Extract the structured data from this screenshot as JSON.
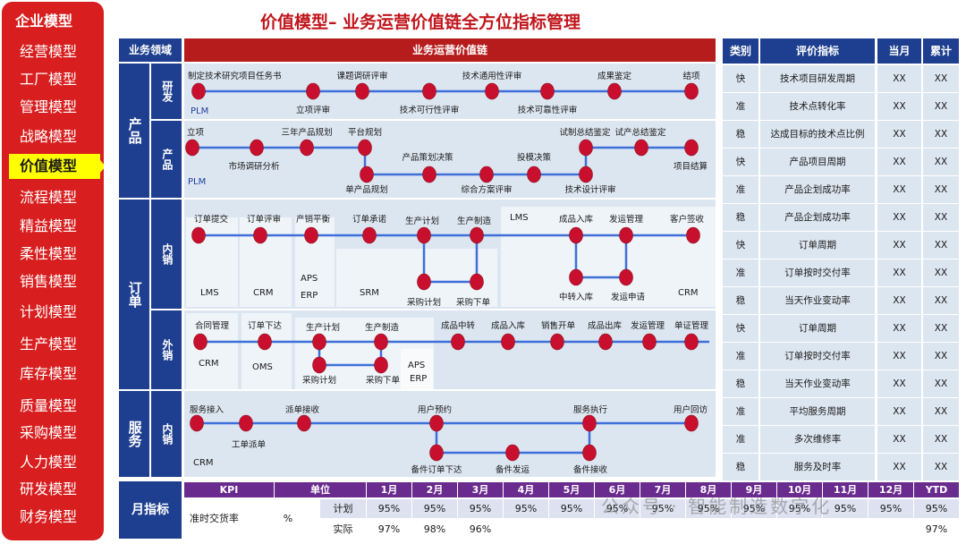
{
  "sidebar": {
    "header": "企业模型",
    "items": [
      "经营模型",
      "工厂模型",
      "管理模型",
      "战略模型",
      "价值模型",
      "流程模型",
      "精益模型",
      "柔性模型",
      "销售模型",
      "计划模型",
      "生产模型",
      "库存模型",
      "质量模型",
      "采购模型",
      "人力模型",
      "研发模型",
      "财务模型"
    ],
    "active": "价值模型"
  },
  "title": "价值模型– 业务运营价值链全方位指标管理",
  "headers": {
    "domain": "业务领域",
    "chain": "业务运营价值链",
    "category": "类别",
    "indicator": "评价指标",
    "month": "当月",
    "ytd": "累计"
  },
  "domains": {
    "product": "产品",
    "product_rd": "研发",
    "product_prod": "产品",
    "order": "订单",
    "order_domestic": "内销",
    "order_export": "外销",
    "service": "服务",
    "service_domestic": "内销"
  },
  "flow": {
    "rd": [
      "制定技术研究项目任务书",
      "立项评审",
      "课题调研评审",
      "技术可行性评审",
      "技术通用性评审",
      "技术可靠性评审",
      "成果鉴定",
      "结项"
    ],
    "product": [
      "立项",
      "市场调研分析",
      "三年产品规划",
      "平台规划",
      "单产品规划",
      "产品策划决策",
      "综合方案评审",
      "投模决策",
      "试制总结鉴定",
      "技术设计评审",
      "试产总结鉴定",
      "项目结算"
    ],
    "domestic": [
      "订单提交",
      "订单评审",
      "产销平衡",
      "订单承诺",
      "生产计划",
      "生产制造",
      "采购计划",
      "采购下单",
      "成品入库",
      "发运管理",
      "客户签收",
      "中转入库",
      "发运申请"
    ],
    "export": [
      "合同管理",
      "订单下达",
      "生产计划",
      "生产制造",
      "采购计划",
      "采购下单",
      "成品中转",
      "成品入库",
      "销售开单",
      "成品出库",
      "发运管理",
      "单证管理"
    ],
    "service": [
      "服务接入",
      "工单派单",
      "派单接收",
      "用户预约",
      "备件订单下达",
      "备件发运",
      "服务执行",
      "备件接收",
      "用户回访"
    ]
  },
  "systems": {
    "plm": "PLM",
    "plm2": "PLM",
    "lms": "LMS",
    "crm": "CRM",
    "aps": "APS",
    "erp": "ERP",
    "srm": "SRM",
    "lms2": "LMS",
    "crm2": "CRM",
    "crm3": "CRM",
    "oms": "OMS",
    "aps2": "APS",
    "erp2": "ERP",
    "crm4": "CRM"
  },
  "indicators": [
    {
      "cat": "快",
      "name": "技术项目研发周期",
      "month": "XX",
      "ytd": "XX"
    },
    {
      "cat": "准",
      "name": "技术点转化率",
      "month": "XX",
      "ytd": "XX"
    },
    {
      "cat": "稳",
      "name": "达成目标的技术点比例",
      "month": "XX",
      "ytd": "XX"
    },
    {
      "cat": "快",
      "name": "产品项目周期",
      "month": "XX",
      "ytd": "XX"
    },
    {
      "cat": "准",
      "name": "产品企划成功率",
      "month": "XX",
      "ytd": "XX"
    },
    {
      "cat": "稳",
      "name": "产品企划成功率",
      "month": "XX",
      "ytd": "XX"
    },
    {
      "cat": "快",
      "name": "订单周期",
      "month": "XX",
      "ytd": "XX"
    },
    {
      "cat": "准",
      "name": "订单按时交付率",
      "month": "XX",
      "ytd": "XX"
    },
    {
      "cat": "稳",
      "name": "当天作业变动率",
      "month": "XX",
      "ytd": "XX"
    },
    {
      "cat": "快",
      "name": "订单周期",
      "month": "XX",
      "ytd": "XX"
    },
    {
      "cat": "准",
      "name": "订单按时交付率",
      "month": "XX",
      "ytd": "XX"
    },
    {
      "cat": "稳",
      "name": "当天作业变动率",
      "month": "XX",
      "ytd": "XX"
    },
    {
      "cat": "准",
      "name": "平均服务周期",
      "month": "XX",
      "ytd": "XX"
    },
    {
      "cat": "准",
      "name": "多次维修率",
      "month": "XX",
      "ytd": "XX"
    },
    {
      "cat": "稳",
      "name": "服务及时率",
      "month": "XX",
      "ytd": "XX"
    }
  ],
  "kpi": {
    "label": "月指标",
    "headers": [
      "KPI",
      "单位",
      "1月",
      "2月",
      "3月",
      "4月",
      "5月",
      "6月",
      "7月",
      "8月",
      "9月",
      "10月",
      "11月",
      "12月",
      "YTD"
    ],
    "name": "准时交货率",
    "unit": "%",
    "rows": [
      {
        "type": "计划",
        "values": [
          "95%",
          "95%",
          "95%",
          "95%",
          "95%",
          "95%",
          "95%",
          "95%",
          "95%",
          "95%",
          "95%",
          "95%",
          "95%"
        ]
      },
      {
        "type": "实际",
        "values": [
          "97%",
          "98%",
          "96%",
          "",
          "",
          "",
          "",
          "",
          "",
          "",
          "",
          "",
          "97%"
        ]
      }
    ]
  },
  "watermark": "公众号 · 智能制造数字化",
  "colors": {
    "sidebar": "#d81e1e",
    "active": "#ffff00",
    "navy": "#1e3f8f",
    "chain_header": "#b71c1c",
    "node": "#c8102e",
    "line": "#3e6fd9",
    "kpi_header": "#6a2b8e"
  }
}
